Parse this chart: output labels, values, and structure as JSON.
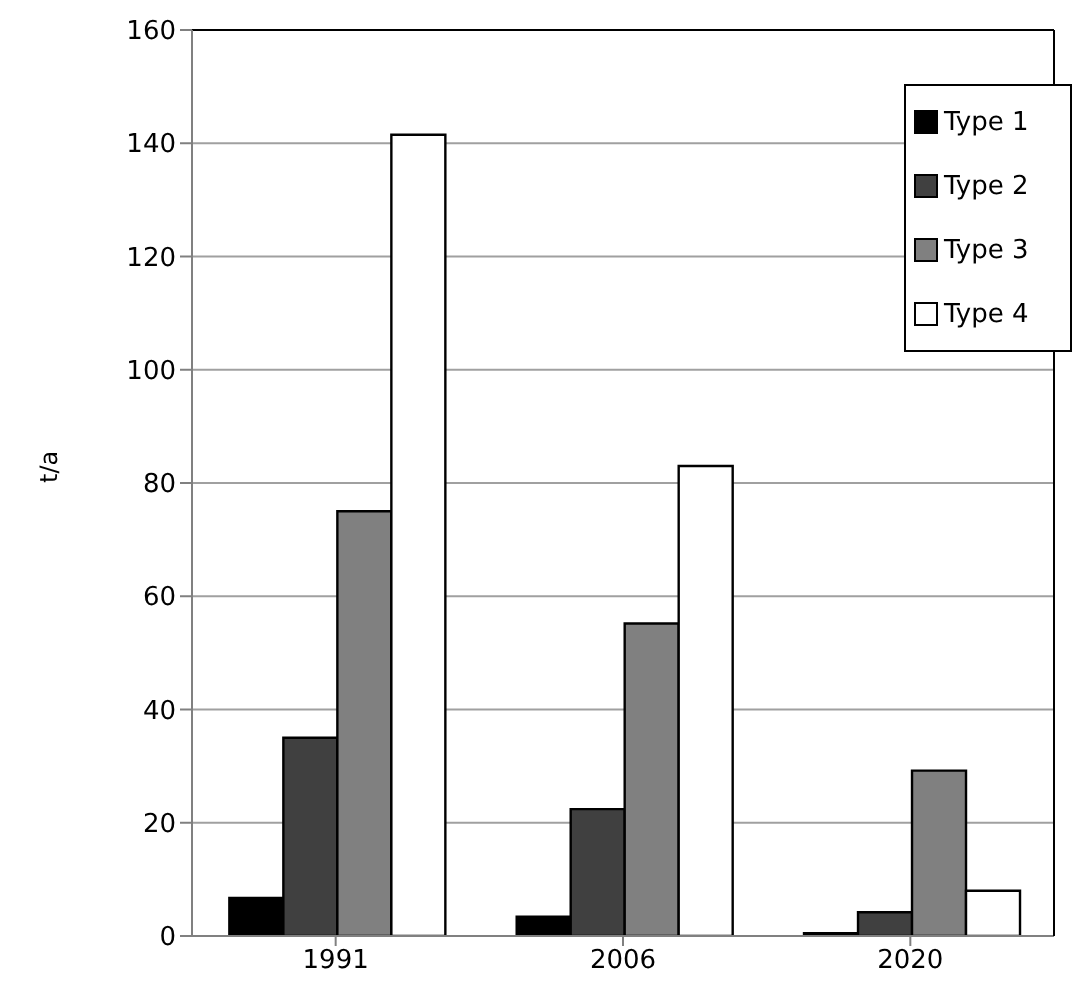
{
  "chart_data": {
    "type": "bar",
    "ylabel": "t/a",
    "categories": [
      "1991",
      "2006",
      "2020"
    ],
    "series": [
      {
        "name": "Type 1",
        "color": "#000000",
        "values": [
          6.7,
          3.4,
          0.5
        ]
      },
      {
        "name": "Type 2",
        "color": "#404040",
        "values": [
          35,
          22.4,
          4.2
        ]
      },
      {
        "name": "Type 3",
        "color": "#808080",
        "values": [
          75,
          55.2,
          29.2
        ]
      },
      {
        "name": "Type 4",
        "color": "#ffffff",
        "values": [
          141.5,
          83,
          8
        ]
      }
    ],
    "ylim": [
      0,
      160
    ],
    "yticks": [
      0,
      20,
      40,
      60,
      80,
      100,
      120,
      140,
      160
    ],
    "grid": "y",
    "legend": "top right"
  }
}
